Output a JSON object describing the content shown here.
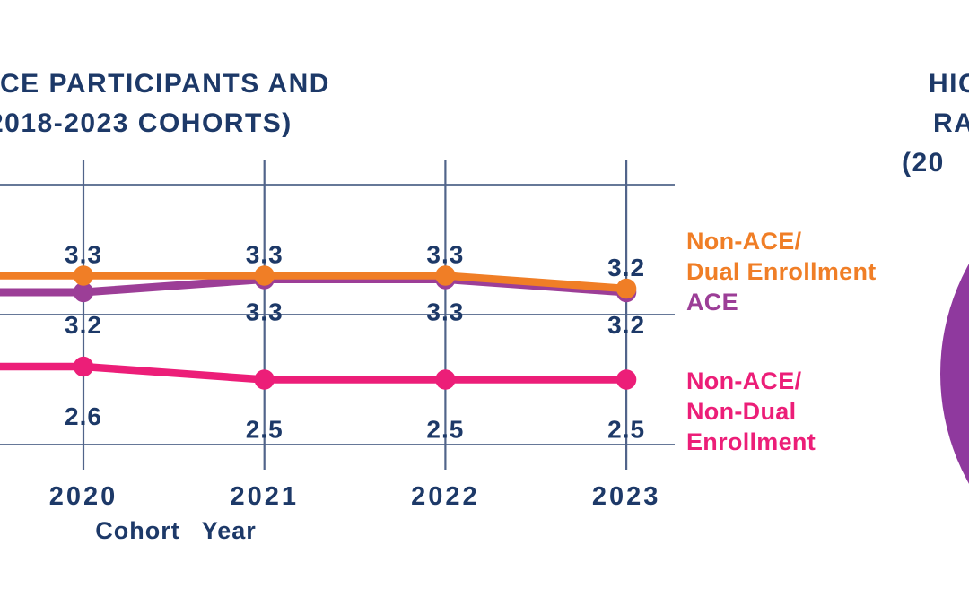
{
  "title_left": {
    "line1": "CE PARTICIPANTS AND",
    "line2": "2018-2023 COHORTS)"
  },
  "title_right": {
    "line1": "HIG",
    "line2": "RA",
    "line3": "(20"
  },
  "chart_data": {
    "type": "line",
    "x": [
      "2020",
      "2021",
      "2022",
      "2023"
    ],
    "xlabel": "Cohort Year",
    "series": [
      {
        "name": "Non-ACE/Dual Enrollment",
        "color": "#F07E26",
        "values": [
          3.3,
          3.3,
          3.3,
          3.2
        ],
        "label_position": "above"
      },
      {
        "name": "ACE",
        "color": "#9C3E97",
        "values": [
          3.2,
          3.3,
          3.3,
          3.2
        ],
        "label_position": "below"
      },
      {
        "name": "Non-ACE/Non-Dual Enrollment",
        "color": "#EC1E78",
        "values": [
          2.6,
          2.5,
          2.5,
          2.5
        ],
        "label_position": "below"
      }
    ],
    "y_gridline_values": [
      4.0,
      3.0,
      2.0
    ],
    "ylim": [
      2.0,
      4.0
    ],
    "grid": true,
    "legend_position": "right"
  },
  "legend": {
    "dual": {
      "line1": "Non-ACE/",
      "line2": "Dual Enrollment"
    },
    "ace": {
      "label": "ACE"
    },
    "nondual": {
      "line1": "Non-ACE/",
      "line2": "Non-Dual",
      "line3": "Enrollment"
    }
  },
  "colors": {
    "navy_text": "#1D3968",
    "gridline": "#51648A",
    "orange": "#F08126",
    "purple": "#9C3E97",
    "pink": "#EC1E78",
    "pie_purple": "#8F399E",
    "background": "#FFFFFF"
  }
}
